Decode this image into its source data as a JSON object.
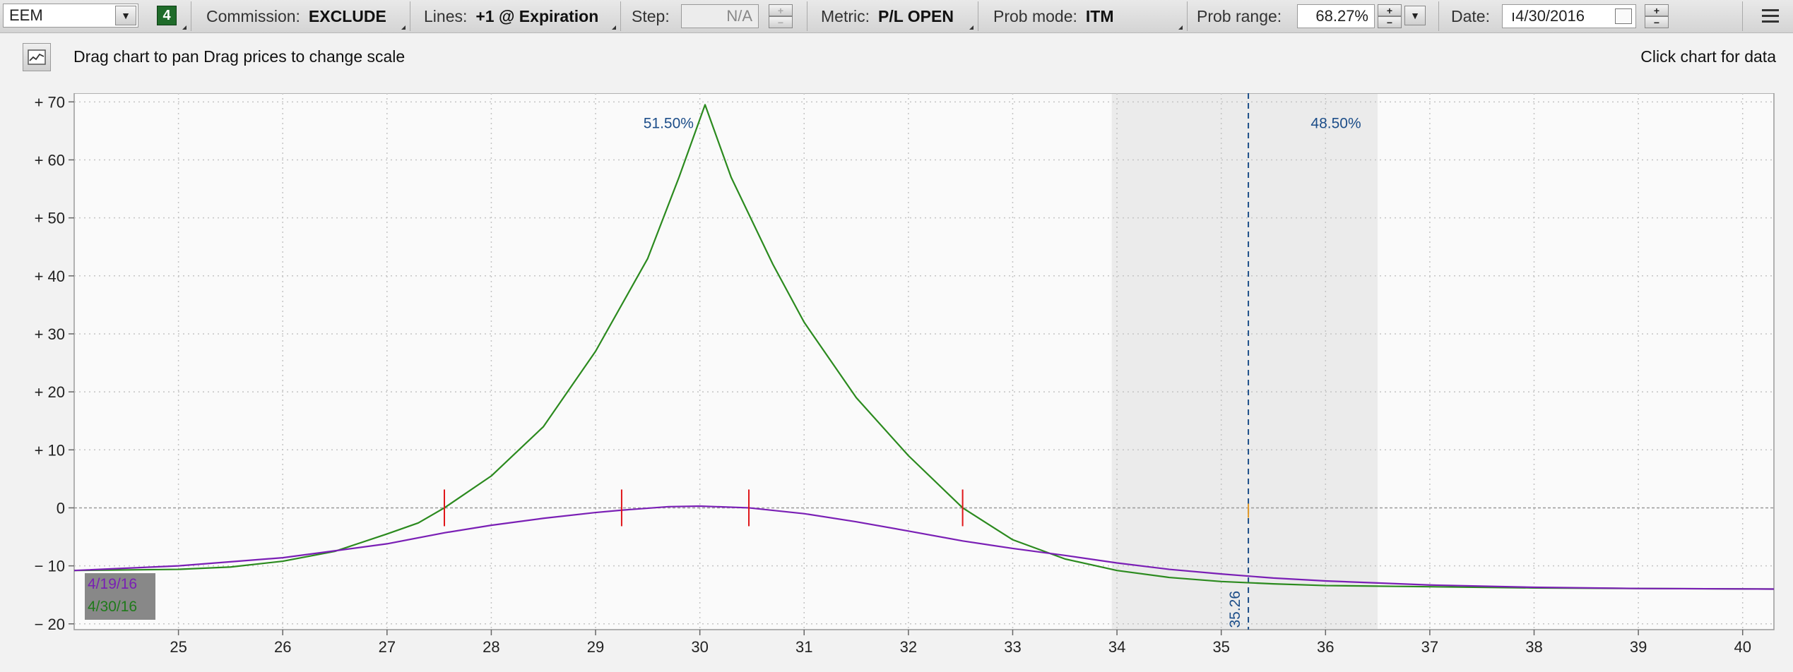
{
  "toolbar": {
    "symbol": "EEM",
    "badge": "4",
    "commission_label": "Commission:",
    "commission_value": "EXCLUDE",
    "lines_label": "Lines:",
    "lines_value": "+1 @ Expiration",
    "step_label": "Step:",
    "step_value": "N/A",
    "metric_label": "Metric:",
    "metric_value": "P/L OPEN",
    "prob_mode_label": "Prob mode:",
    "prob_mode_value": "ITM",
    "prob_range_label": "Prob range:",
    "prob_range_value": "68.27%",
    "date_label": "Date:",
    "date_value": "ı4/30/2016"
  },
  "hint": {
    "left": "Drag chart to pan Drag prices to change scale",
    "right": "Click chart for data"
  },
  "colors": {
    "series_green": "#2b8a1e",
    "series_purple": "#7a1fb5",
    "marker_red": "#e0161a",
    "prob_blue": "#1d4e89",
    "band_gray": "#ebebeb"
  },
  "chart_data": {
    "type": "line",
    "xlim": [
      24,
      40.3
    ],
    "ylim": [
      -21,
      71.5
    ],
    "x_ticks": [
      "25",
      "26",
      "27",
      "28",
      "29",
      "30",
      "31",
      "32",
      "33",
      "34",
      "35",
      "36",
      "37",
      "38",
      "39",
      "40"
    ],
    "y_ticks": [
      {
        "v": 70,
        "label": "+ 70"
      },
      {
        "v": 60,
        "label": "+ 60"
      },
      {
        "v": 50,
        "label": "+ 50"
      },
      {
        "v": 40,
        "label": "+ 40"
      },
      {
        "v": 30,
        "label": "+ 30"
      },
      {
        "v": 20,
        "label": "+ 20"
      },
      {
        "v": 10,
        "label": "+ 10"
      },
      {
        "v": 0,
        "label": "0"
      },
      {
        "v": -10,
        "label": "− 10"
      },
      {
        "v": -20,
        "label": "− 20"
      }
    ],
    "prob_band": [
      33.95,
      36.5
    ],
    "price_line": {
      "x": 35.26,
      "label": "35.26"
    },
    "prob_labels": [
      {
        "text": "51.50%",
        "x": 29.7,
        "y": 65.5
      },
      {
        "text": "48.50%",
        "x": 36.1,
        "y": 65.5
      }
    ],
    "markers": [
      27.55,
      29.25,
      30.47,
      32.52
    ],
    "series": [
      {
        "name": "4/30/16",
        "color": "#2b8a1e",
        "points": [
          [
            24,
            -10.8
          ],
          [
            25,
            -10.6
          ],
          [
            25.5,
            -10.2
          ],
          [
            26,
            -9.2
          ],
          [
            26.5,
            -7.5
          ],
          [
            27,
            -4.5
          ],
          [
            27.3,
            -2.6
          ],
          [
            27.55,
            0
          ],
          [
            28,
            5.5
          ],
          [
            28.5,
            14
          ],
          [
            29,
            27
          ],
          [
            29.5,
            43
          ],
          [
            29.8,
            57
          ],
          [
            30.05,
            69.5
          ],
          [
            30.3,
            57
          ],
          [
            30.7,
            42
          ],
          [
            31,
            32
          ],
          [
            31.5,
            19
          ],
          [
            32,
            9
          ],
          [
            32.52,
            0
          ],
          [
            33,
            -5.5
          ],
          [
            33.5,
            -8.8
          ],
          [
            34,
            -10.8
          ],
          [
            34.5,
            -12
          ],
          [
            35,
            -12.7
          ],
          [
            35.5,
            -13.1
          ],
          [
            36,
            -13.4
          ],
          [
            37,
            -13.6
          ],
          [
            38,
            -13.8
          ],
          [
            39,
            -13.9
          ],
          [
            40.3,
            -14
          ]
        ]
      },
      {
        "name": "4/19/16",
        "color": "#7a1fb5",
        "points": [
          [
            24,
            -10.8
          ],
          [
            25,
            -10
          ],
          [
            26,
            -8.6
          ],
          [
            27,
            -6.2
          ],
          [
            27.55,
            -4.3
          ],
          [
            28,
            -3
          ],
          [
            28.5,
            -1.8
          ],
          [
            29,
            -0.8
          ],
          [
            29.25,
            -0.4
          ],
          [
            29.7,
            0.2
          ],
          [
            30,
            0.3
          ],
          [
            30.47,
            0
          ],
          [
            31,
            -1
          ],
          [
            31.5,
            -2.4
          ],
          [
            32,
            -4
          ],
          [
            32.52,
            -5.7
          ],
          [
            33,
            -7
          ],
          [
            33.5,
            -8.2
          ],
          [
            34,
            -9.5
          ],
          [
            34.5,
            -10.6
          ],
          [
            35,
            -11.4
          ],
          [
            35.5,
            -12.1
          ],
          [
            36,
            -12.6
          ],
          [
            37,
            -13.3
          ],
          [
            38,
            -13.7
          ],
          [
            39,
            -13.9
          ],
          [
            40.3,
            -14
          ]
        ]
      }
    ]
  }
}
